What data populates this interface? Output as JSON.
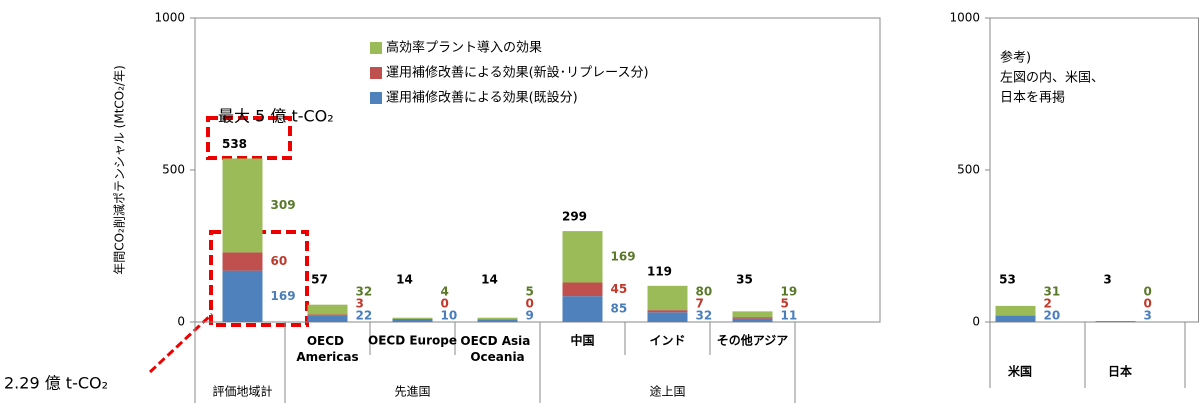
{
  "chart_data": [
    {
      "type": "stacked_bar",
      "y_label": "年間CO₂削減ポテンシャル (MtCO₂/年)",
      "categories": [
        "評価地域計",
        "OECD Americas",
        "OECD Europe",
        "OECD Asia Oceania",
        "中国",
        "インド",
        "その他アジア"
      ],
      "groups": [
        null,
        "先進国",
        "先進国",
        "先進国",
        "途上国",
        "途上国",
        "途上国"
      ],
      "series": [
        {
          "name": "運用補修改善による効果(既設分)",
          "color": "#4f81bd",
          "label_color": "#4a7ebb",
          "values": [
            169,
            22,
            10,
            9,
            85,
            32,
            11
          ]
        },
        {
          "name": "運用補修改善による効果(新設･リプレース分)",
          "color": "#c0504d",
          "label_color": "#c0392b",
          "values": [
            60,
            3,
            0,
            0,
            45,
            7,
            5
          ]
        },
        {
          "name": "高効率プラント導入の効果",
          "color": "#9bbb59",
          "label_color": "#5a7a2a",
          "values": [
            309,
            32,
            4,
            5,
            169,
            80,
            19
          ]
        }
      ],
      "totals": [
        538,
        57,
        14,
        14,
        299,
        119,
        35
      ],
      "ylim": [
        0,
        1000
      ],
      "yticks": [
        0,
        500,
        1000
      ],
      "legend": "top",
      "annotations": [
        "最大 5 億 t-CO₂",
        "2.29 億 t-CO₂"
      ]
    },
    {
      "type": "stacked_bar",
      "categories": [
        "米国",
        "日本"
      ],
      "series": [
        {
          "color": "#4f81bd",
          "label_color": "#4a7ebb",
          "values": [
            20,
            3
          ]
        },
        {
          "color": "#c0504d",
          "label_color": "#c0392b",
          "values": [
            2,
            0
          ]
        },
        {
          "color": "#9bbb59",
          "label_color": "#5a7a2a",
          "values": [
            31,
            0
          ]
        }
      ],
      "totals": [
        53,
        3
      ],
      "ylim": [
        0,
        1000
      ],
      "yticks": [
        0,
        500,
        1000
      ],
      "note": [
        "参考)",
        "左図の内、米国、",
        "日本を再掲"
      ]
    }
  ]
}
